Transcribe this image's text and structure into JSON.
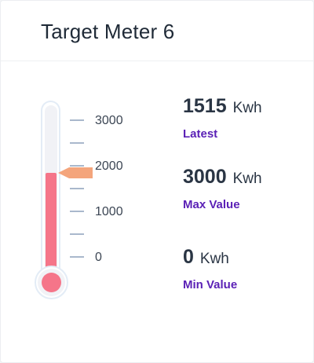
{
  "header": {
    "title": "Target Meter 6"
  },
  "meter": {
    "scale_min": 0,
    "scale_max": 3000,
    "pointer_value": 1850,
    "fill_color": "#f57589",
    "pointer_color": "#f4a57c",
    "ticks": [
      "3000",
      "2000",
      "1000",
      "0"
    ]
  },
  "stats": {
    "latest": {
      "value": "1515",
      "unit": "Kwh",
      "label": "Latest"
    },
    "max": {
      "value": "3000",
      "unit": "Kwh",
      "label": "Max Value"
    },
    "min": {
      "value": "0",
      "unit": "Kwh",
      "label": "Min Value"
    }
  },
  "colors": {
    "accent": "#5b21b6",
    "text": "#2a3544"
  }
}
